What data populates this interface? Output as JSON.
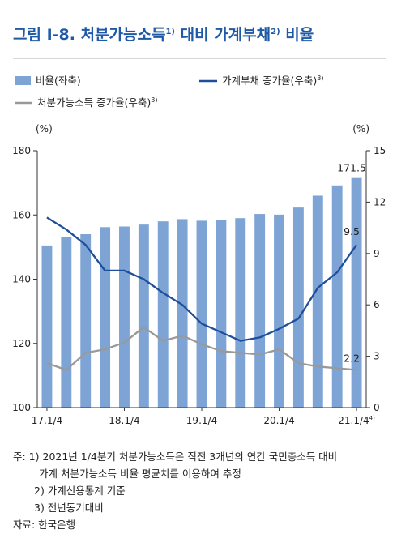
{
  "figure": {
    "title_main": "그림 Ⅰ-8. 처분가능소득",
    "title_sup1": "1)",
    "title_mid": " 대비 가계부채",
    "title_sup2": "2)",
    "title_end": " 비율"
  },
  "colors": {
    "title": "#1f5aa6",
    "bar": "#7ea4d6",
    "ratio_line": "#1f4f9a",
    "income_line": "#999999"
  },
  "chart_data": {
    "type": "bar",
    "legend": [
      {
        "label": "비율(좌축)",
        "marker": "bar"
      },
      {
        "label": "가계부채 증가율(우축)",
        "sup": "3)",
        "marker": "line-blue"
      },
      {
        "label": "처분가능소득 증가율(우축)",
        "sup": "3)",
        "marker": "line-gray"
      }
    ],
    "left_unit": "(%)",
    "right_unit": "(%)",
    "left_ylim": [
      100,
      180
    ],
    "left_ticks": [
      100,
      120,
      140,
      160,
      180
    ],
    "right_ylim": [
      0,
      15
    ],
    "right_ticks": [
      0,
      3,
      6,
      9,
      12,
      15
    ],
    "x_labels": [
      {
        "index": 0,
        "text": "17.1/4"
      },
      {
        "index": 4,
        "text": "18.1/4"
      },
      {
        "index": 8,
        "text": "19.1/4"
      },
      {
        "index": 12,
        "text": "20.1/4"
      },
      {
        "index": 16,
        "text": "21.1/4",
        "sup": "4)"
      }
    ],
    "categories": [
      "17.1/4",
      "17.2/4",
      "17.3/4",
      "17.4/4",
      "18.1/4",
      "18.2/4",
      "18.3/4",
      "18.4/4",
      "19.1/4",
      "19.2/4",
      "19.3/4",
      "19.4/4",
      "20.1/4",
      "20.2/4",
      "20.3/4",
      "20.4/4",
      "21.1/4"
    ],
    "series": [
      {
        "name": "비율(좌축)",
        "axis": "left",
        "values": [
          150.5,
          153.0,
          154.0,
          156.2,
          156.4,
          157.0,
          158.0,
          158.7,
          158.2,
          158.5,
          159.0,
          160.3,
          160.1,
          162.3,
          166.0,
          169.2,
          171.5
        ]
      },
      {
        "name": "가계부채 증가율(우축)",
        "axis": "right",
        "values": [
          11.1,
          10.4,
          9.5,
          8.0,
          8.0,
          7.5,
          6.7,
          6.0,
          4.9,
          4.4,
          3.9,
          4.1,
          4.6,
          5.2,
          7.0,
          7.9,
          9.5
        ]
      },
      {
        "name": "처분가능소득 증가율(우축)",
        "axis": "right",
        "values": [
          2.6,
          2.2,
          3.2,
          3.4,
          3.8,
          4.7,
          3.9,
          4.2,
          3.7,
          3.3,
          3.2,
          3.1,
          3.4,
          2.6,
          2.4,
          2.3,
          2.2
        ]
      }
    ],
    "data_labels": [
      {
        "series": 0,
        "index": 16,
        "text": "171.5"
      },
      {
        "series": 1,
        "index": 16,
        "text": "9.5"
      },
      {
        "series": 2,
        "index": 16,
        "text": "2.2"
      }
    ]
  },
  "notes": {
    "note1_line1": "주: 1) 2021년 1/4분기 처분가능소득은 직전 3개년의 연간 국민총소득 대비",
    "note1_line2": "가계 처분가능소득 비율 평균치를 이용하여 추정",
    "note2": "2) 가계신용통계 기준",
    "note3": "3) 전년동기대비",
    "source": "자료: 한국은행"
  }
}
